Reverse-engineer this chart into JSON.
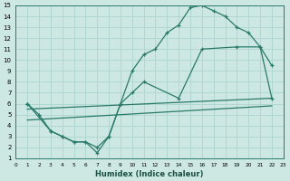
{
  "xlabel": "Humidex (Indice chaleur)",
  "bg_color": "#cde8e2",
  "grid_color": "#b0d8d0",
  "line_color": "#2a7a6a",
  "xlim": [
    0,
    23
  ],
  "ylim": [
    1,
    15
  ],
  "xticks": [
    0,
    1,
    2,
    3,
    4,
    5,
    6,
    7,
    8,
    9,
    10,
    11,
    12,
    13,
    14,
    15,
    16,
    17,
    18,
    19,
    20,
    21,
    22,
    23
  ],
  "yticks": [
    1,
    2,
    3,
    4,
    5,
    6,
    7,
    8,
    9,
    10,
    11,
    12,
    13,
    14,
    15
  ],
  "curve1_x": [
    1,
    2,
    3,
    4,
    5,
    6,
    7,
    8,
    9,
    10,
    11,
    12,
    13,
    14,
    15,
    16,
    17,
    18,
    19,
    20,
    21,
    22
  ],
  "curve1_y": [
    6,
    5,
    3.5,
    3,
    2.5,
    2.5,
    1.5,
    3,
    6,
    9,
    10.5,
    11,
    12.5,
    13.2,
    14.8,
    15,
    14.5,
    14,
    13,
    12.5,
    11.2,
    9.5
  ],
  "curve2_x": [
    1,
    3,
    4,
    5,
    6,
    7,
    8,
    9,
    10,
    11,
    14,
    16,
    19,
    21,
    22
  ],
  "curve2_y": [
    6,
    3.5,
    3,
    2.5,
    2.5,
    2,
    3,
    6,
    7,
    8,
    6.5,
    11,
    11.2,
    11.2,
    6.5
  ],
  "line1_x": [
    1,
    22
  ],
  "line1_y": [
    5.5,
    6.5
  ],
  "line2_x": [
    1,
    22
  ],
  "line2_y": [
    4.5,
    5.8
  ]
}
